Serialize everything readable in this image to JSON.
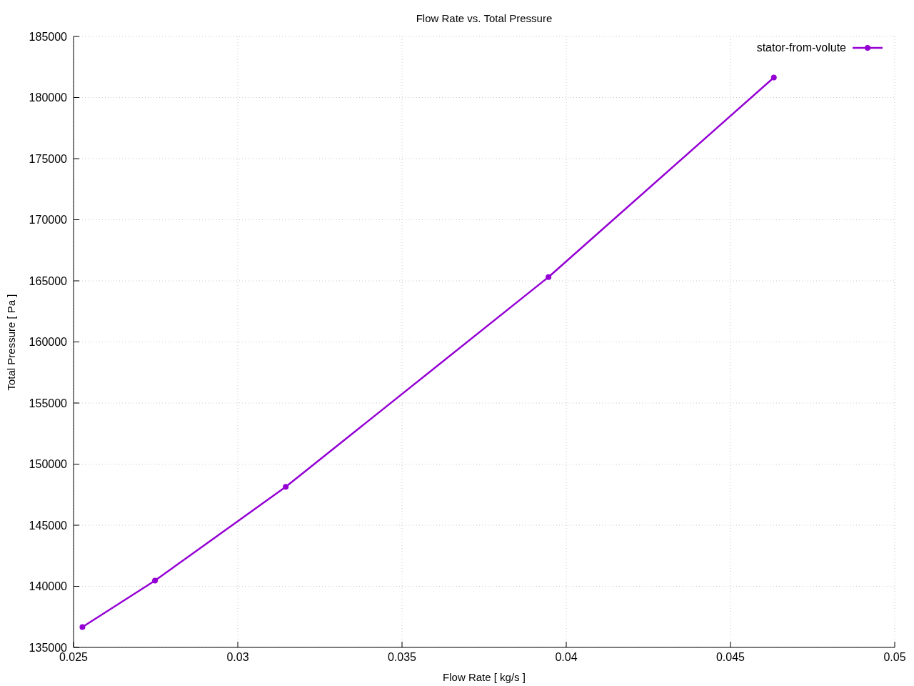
{
  "chart_data": {
    "type": "line",
    "title": "Flow Rate vs. Total Pressure",
    "xlabel": "Flow Rate [ kg/s ]",
    "ylabel": "Total Pressure [ Pa ]",
    "x": [
      0.02527,
      0.02748,
      0.03146,
      0.03946,
      0.04632
    ],
    "series": [
      {
        "name": "stator-from-volute",
        "color": "#9400d3",
        "values": [
          136670,
          140470,
          148140,
          165310,
          181640
        ]
      }
    ],
    "xlim": [
      0.025,
      0.05
    ],
    "xticks": [
      0.025,
      0.03,
      0.035,
      0.04,
      0.045,
      0.05
    ],
    "ylim": [
      135000,
      185000
    ],
    "yticks": [
      135000,
      140000,
      145000,
      150000,
      155000,
      160000,
      165000,
      170000,
      175000,
      180000,
      185000
    ],
    "grid": true,
    "legend": "top right",
    "marker": "circle",
    "line_style": "solid"
  }
}
